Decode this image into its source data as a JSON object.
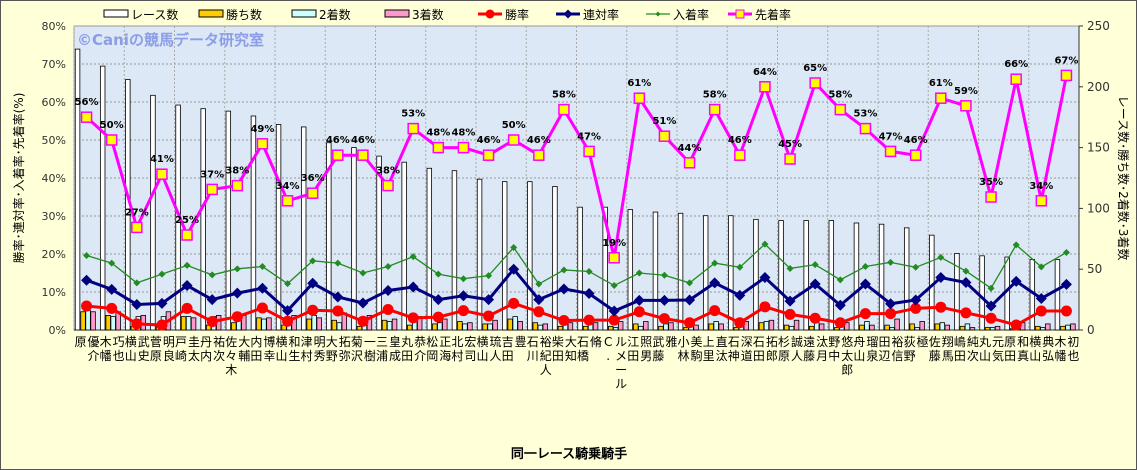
{
  "chart_data": {
    "type": "bar+line",
    "watermark": "©Caniの競馬データ研究室",
    "xlabel": "同一レース騎乗騎手",
    "ylabel_left": "勝率･連対率･入着率･先着率(%)",
    "ylabel_right": "レース数･勝ち数･2着数･3着数",
    "ylim_left": [
      0,
      80
    ],
    "ylim_right": [
      0,
      250
    ],
    "left_ticks": [
      "0%",
      "10%",
      "20%",
      "30%",
      "40%",
      "50%",
      "60%",
      "70%",
      "80%"
    ],
    "right_ticks": [
      "0",
      "50",
      "100",
      "150",
      "200",
      "250"
    ],
    "legend": [
      "レース数",
      "勝ち数",
      "2着数",
      "3着数",
      "勝率",
      "連対率",
      "入着率",
      "先着率"
    ],
    "legend_position": "top",
    "colors": {
      "races": "#ffffff",
      "wins": "#ffcc00",
      "second": "#ccffff",
      "third": "#ff99cc",
      "win_rate": "#ff0000",
      "rentai": "#000080",
      "nyuchaku": "#228b22",
      "senchaku": "#ff00ff",
      "plot_bg": "#dce8f5"
    },
    "categories": [
      [
        "原",
        "優介"
      ],
      [
        "木幡",
        "巧也"
      ],
      [
        "横山",
        "武史"
      ],
      [
        "菅原",
        "明良"
      ],
      [
        "戸崎",
        "圭太"
      ],
      [
        "丹内",
        "祐次"
      ],
      [
        "佐々木",
        "大輔"
      ],
      [
        "内田",
        "博幸"
      ],
      [
        "横山",
        "和生"
      ],
      [
        "津村",
        "明秀"
      ],
      [
        "大野",
        "拓弥"
      ],
      [
        "菊沢",
        "一樹"
      ],
      [
        "三浦",
        "皇成"
      ],
      [
        "丸田",
        "恭介"
      ],
      [
        "松岡",
        "正海"
      ],
      [
        "北村",
        "宏司"
      ],
      [
        "横山",
        "琉人"
      ],
      [
        "吉田",
        "豊"
      ],
      [
        "石川",
        "裕紀人"
      ],
      [
        "柴田",
        "大知"
      ],
      [
        "石橋",
        "脩"
      ],
      [
        "C.",
        "ルメール"
      ],
      [
        "江田",
        "照男"
      ],
      [
        "武藤",
        "雅"
      ],
      [
        "小林",
        "美駒"
      ],
      [
        "上里",
        "直汰"
      ],
      [
        "石神",
        "深道"
      ],
      [
        "石田",
        "拓郎"
      ],
      [
        "杉原",
        "誠人"
      ],
      [
        "遠藤",
        "汰月"
      ],
      [
        "野中",
        "悠太郎"
      ],
      [
        "舟山",
        "瑠泉"
      ],
      [
        "田辺",
        "裕信"
      ],
      [
        "荻野",
        "極"
      ],
      [
        "佐藤",
        "翔馬"
      ],
      [
        "嶋田",
        "純次"
      ],
      [
        "丸山",
        "元気"
      ],
      [
        "原田",
        "和真"
      ],
      [
        "横山",
        "典弘"
      ],
      [
        "木幡",
        "初也"
      ]
    ],
    "series": [
      {
        "name": "レース数",
        "axis": "right",
        "kind": "bar",
        "values": [
          231,
          217,
          206,
          193,
          185,
          182,
          180,
          176,
          169,
          167,
          154,
          150,
          143,
          138,
          133,
          131,
          124,
          122,
          122,
          118,
          101,
          101,
          99,
          97,
          96,
          94,
          94,
          91,
          90,
          90,
          90,
          88,
          87,
          84,
          78,
          63,
          61,
          60,
          58,
          58
        ]
      },
      {
        "name": "勝ち数",
        "axis": "right",
        "kind": "bar",
        "values": [
          15,
          12,
          3,
          3,
          11,
          4,
          6,
          10,
          4,
          9,
          8,
          3,
          8,
          4,
          5,
          7,
          5,
          9,
          6,
          3,
          3,
          3,
          5,
          3,
          2,
          5,
          2,
          6,
          4,
          3,
          2,
          4,
          4,
          5,
          5,
          3,
          2,
          1,
          3,
          3
        ]
      },
      {
        "name": "2着数",
        "axis": "right",
        "kind": "bar",
        "values": [
          16,
          11,
          11,
          11,
          11,
          11,
          11,
          9,
          5,
          12,
          6,
          7,
          7,
          11,
          6,
          5,
          5,
          11,
          4,
          10,
          7,
          2,
          3,
          5,
          6,
          7,
          7,
          7,
          3,
          8,
          4,
          7,
          2,
          2,
          6,
          5,
          2,
          7,
          2,
          4
        ]
      },
      {
        "name": "3着数",
        "axis": "right",
        "kind": "bar",
        "values": [
          15,
          15,
          12,
          15,
          10,
          12,
          12,
          10,
          12,
          10,
          14,
          12,
          9,
          11,
          9,
          6,
          8,
          7,
          5,
          6,
          6,
          7,
          7,
          6,
          4,
          5,
          7,
          8,
          8,
          5,
          6,
          4,
          9,
          7,
          4,
          2,
          3,
          6,
          5,
          5
        ]
      },
      {
        "name": "勝率",
        "axis": "left",
        "kind": "line",
        "values": [
          6.3,
          5.7,
          1.6,
          1.3,
          5.7,
          2.2,
          3.5,
          5.8,
          2.3,
          5.2,
          5.0,
          2.3,
          5.4,
          3.2,
          3.4,
          5.1,
          3.7,
          7.0,
          4.8,
          2.5,
          2.6,
          2.6,
          4.8,
          3.0,
          1.9,
          5.1,
          1.9,
          6.1,
          4.1,
          3.1,
          1.9,
          4.3,
          4.3,
          5.7,
          6.0,
          4.5,
          3.1,
          1.3,
          5.0,
          5.0
        ]
      },
      {
        "name": "連対率",
        "axis": "left",
        "kind": "line",
        "values": [
          13.1,
          10.7,
          6.7,
          7.0,
          11.7,
          8.0,
          9.7,
          11.0,
          5.1,
          12.3,
          8.7,
          7.1,
          10.4,
          11.3,
          8.0,
          9.0,
          8.0,
          16.0,
          8.0,
          10.8,
          9.6,
          5.0,
          7.8,
          7.8,
          7.9,
          12.4,
          9.1,
          13.8,
          7.6,
          12.1,
          6.5,
          12.1,
          6.9,
          7.9,
          13.8,
          12.5,
          6.3,
          12.8,
          8.3,
          12.0
        ]
      },
      {
        "name": "入着率",
        "axis": "left",
        "kind": "line",
        "values": [
          19.6,
          17.6,
          12.4,
          14.7,
          17.0,
          14.5,
          16.1,
          16.7,
          12.2,
          18.2,
          17.6,
          15.0,
          16.7,
          19.3,
          14.7,
          13.5,
          14.3,
          21.7,
          12.1,
          15.8,
          15.4,
          11.7,
          15.0,
          14.4,
          12.4,
          17.6,
          16.5,
          22.6,
          16.2,
          17.2,
          13.2,
          16.7,
          17.8,
          16.5,
          19.1,
          15.5,
          11.0,
          22.4,
          16.6,
          20.4
        ]
      },
      {
        "name": "先着率",
        "axis": "left",
        "kind": "line",
        "values": [
          56,
          50,
          27,
          41,
          25,
          37,
          38,
          49,
          34,
          36,
          46,
          46,
          38,
          53,
          48,
          48,
          46,
          50,
          46,
          58,
          47,
          19,
          61,
          51,
          44,
          58,
          46,
          64,
          45,
          65,
          58,
          53,
          47,
          46,
          61,
          59,
          35,
          66,
          34,
          67
        ],
        "labels": [
          "56%",
          "50%",
          "27%",
          "41%",
          "25%",
          "37%",
          "38%",
          "49%",
          "34%",
          "36%",
          "46%",
          "46%",
          "38%",
          "53%",
          "48%",
          "48%",
          "46%",
          "50%",
          "46%",
          "58%",
          "47%",
          "19%",
          "61%",
          "51%",
          "44%",
          "58%",
          "46%",
          "64%",
          "45%",
          "65%",
          "58%",
          "53%",
          "47%",
          "46%",
          "61%",
          "59%",
          "35%",
          "66%",
          "34%",
          "67%"
        ]
      }
    ]
  }
}
